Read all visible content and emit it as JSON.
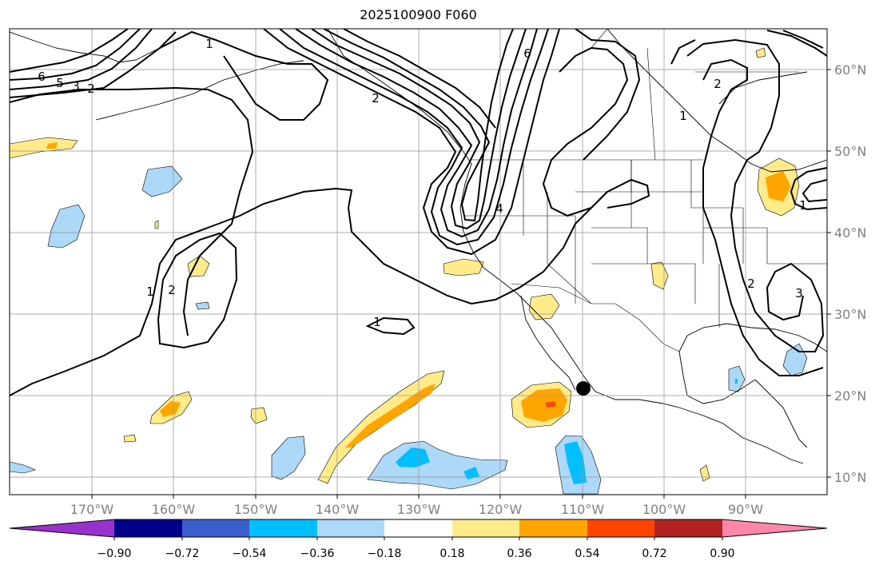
{
  "title": "2025100900 F060",
  "map": {
    "lon_ticks": [
      "170°W",
      "160°W",
      "150°W",
      "140°W",
      "130°W",
      "120°W",
      "110°W",
      "100°W",
      "90°W"
    ],
    "lat_ticks": [
      "60°N",
      "50°N",
      "40°N",
      "30°N",
      "20°N",
      "10°N"
    ],
    "contour_labels": [
      "6",
      "5",
      "3",
      "2",
      "1",
      "1",
      "2",
      "1",
      "6",
      "4",
      "2",
      "1",
      "2",
      "3",
      "2",
      "1"
    ],
    "marker": "black-dot"
  },
  "colorbar": {
    "labels": [
      "−0.90",
      "−0.72",
      "−0.54",
      "−0.36",
      "−0.18",
      "0.18",
      "0.36",
      "0.54",
      "0.72",
      "0.90"
    ],
    "colors": [
      "#9932cc",
      "#00008b",
      "#3a5fcd",
      "#00bfff",
      "#add8f8",
      "#ffffff",
      "#ffeb8a",
      "#ffa500",
      "#ff4500",
      "#b22222",
      "#ff88aa"
    ]
  }
}
